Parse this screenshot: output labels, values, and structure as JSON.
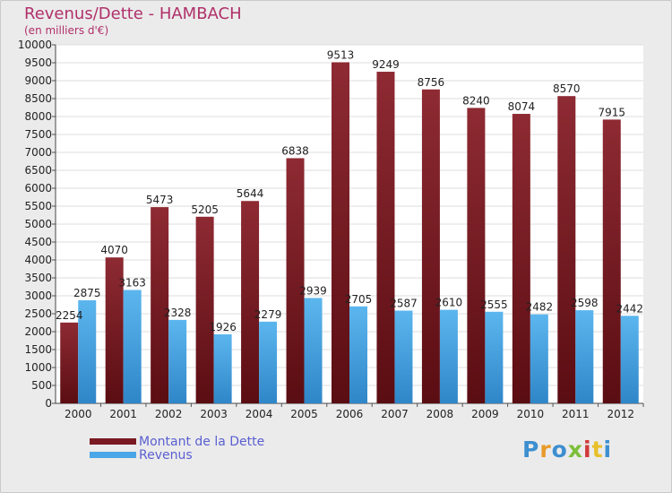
{
  "chart_data": {
    "type": "bar",
    "title": "Revenus/Dette - HAMBACH",
    "subtitle": "(en milliers d'€)",
    "categories": [
      "2000",
      "2001",
      "2002",
      "2003",
      "2004",
      "2005",
      "2006",
      "2007",
      "2008",
      "2009",
      "2010",
      "2011",
      "2012"
    ],
    "series": [
      {
        "name": "Montant de la Dette",
        "color": "#7a1a22",
        "values": [
          2254,
          4070,
          5473,
          5205,
          5644,
          6838,
          9513,
          9249,
          8756,
          8240,
          8074,
          8570,
          7915
        ]
      },
      {
        "name": "Revenus",
        "color": "#4aa6e6",
        "values": [
          2875,
          3163,
          2328,
          1926,
          2279,
          2939,
          2705,
          2587,
          2610,
          2555,
          2482,
          2598,
          2442
        ]
      }
    ],
    "ylim": [
      0,
      10000
    ],
    "yticks": [
      0,
      500,
      1000,
      1500,
      2000,
      2500,
      3000,
      3500,
      4000,
      4500,
      5000,
      5500,
      6000,
      6500,
      7000,
      7500,
      8000,
      8500,
      9000,
      9500,
      10000
    ],
    "grid": true,
    "legend_position": "bottom-left"
  },
  "logo": {
    "text": "Proxiti",
    "letters": [
      "P",
      "r",
      "o",
      "x",
      "i",
      "t",
      "i"
    ],
    "colors": [
      "#3d8fd0",
      "#e89a2a",
      "#3d8fd0",
      "#7cbf3a",
      "#d23a3a",
      "#e8c02a",
      "#3d8fd0"
    ]
  }
}
